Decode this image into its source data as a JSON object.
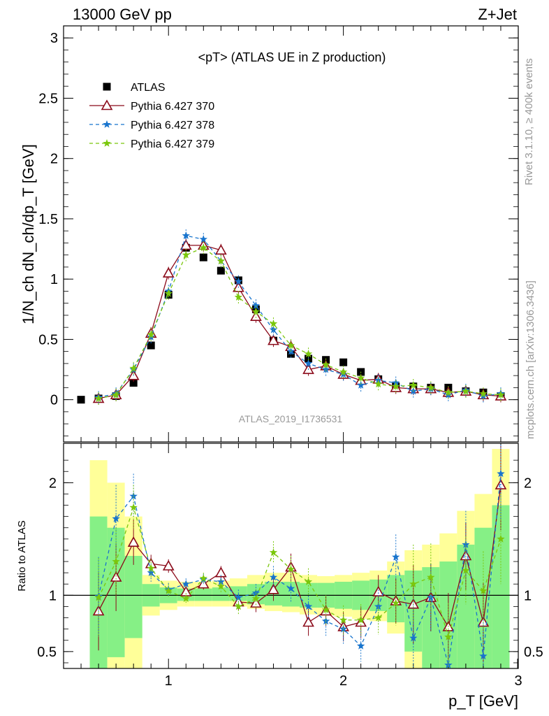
{
  "header": {
    "energy": "13000 GeV pp",
    "process": "Z+Jet",
    "side_top": "Rivet 3.1.10, ≥ 400k events",
    "side_bottom": "mcplots.cern.ch [arXiv:1306.3436]",
    "analysis": "ATLAS_2019_I1736531"
  },
  "colors": {
    "atlas": "#000000",
    "p370": "#8b0a1a",
    "p378": "#1874cd",
    "p379": "#7ac70c",
    "band_yellow": "#ffff99",
    "band_green": "#86f086",
    "watermark": "#999999"
  },
  "chart_data": [
    {
      "type": "line",
      "title": "<pT> (ATLAS UE in Z production)",
      "ylabel": "1/N_ch dN_ch/dp_T [GeV]",
      "xlim": [
        0.4,
        3.0
      ],
      "ylim": [
        -0.35,
        3.1
      ],
      "yticks": [
        "0",
        "0.5",
        "1",
        "1.5",
        "2",
        "2.5",
        "3"
      ],
      "legend_position": "top-left",
      "x": [
        0.5,
        0.6,
        0.7,
        0.8,
        0.9,
        1.0,
        1.1,
        1.2,
        1.3,
        1.4,
        1.5,
        1.6,
        1.7,
        1.8,
        1.9,
        2.0,
        2.1,
        2.2,
        2.3,
        2.4,
        2.5,
        2.6,
        2.7,
        2.8,
        2.9
      ],
      "series": [
        {
          "name": "ATLAS",
          "marker": "square",
          "values": [
            0.0,
            0.01,
            0.03,
            0.14,
            0.45,
            0.87,
            1.26,
            1.18,
            1.07,
            0.99,
            0.75,
            0.49,
            0.38,
            0.34,
            0.33,
            0.31,
            0.23,
            0.17,
            0.11,
            0.11,
            0.1,
            0.1,
            0.07,
            0.06,
            0.03
          ]
        },
        {
          "name": "Pythia 6.427 370",
          "marker": "triangle",
          "values": [
            null,
            0.01,
            0.04,
            0.2,
            0.55,
            1.05,
            1.28,
            1.28,
            1.24,
            0.93,
            0.69,
            0.49,
            0.44,
            0.25,
            0.28,
            0.21,
            0.16,
            0.17,
            0.1,
            0.09,
            0.09,
            0.06,
            0.07,
            0.04,
            0.03
          ]
        },
        {
          "name": "Pythia 6.427 378",
          "marker": "star",
          "values": [
            null,
            0.02,
            0.05,
            0.25,
            0.52,
            0.9,
            1.36,
            1.33,
            1.15,
            0.98,
            0.78,
            0.58,
            0.4,
            0.3,
            0.25,
            0.21,
            0.12,
            0.16,
            0.14,
            0.07,
            0.09,
            0.04,
            0.08,
            0.03,
            0.05
          ]
        },
        {
          "name": "Pythia 6.427 379",
          "marker": "star",
          "values": [
            null,
            0.01,
            0.04,
            0.26,
            0.54,
            0.88,
            1.2,
            1.26,
            1.15,
            0.85,
            0.73,
            0.63,
            0.45,
            0.38,
            0.29,
            0.23,
            0.18,
            0.13,
            0.11,
            0.12,
            0.1,
            0.06,
            0.07,
            0.05,
            0.04
          ]
        }
      ]
    },
    {
      "type": "line",
      "ylabel": "Ratio to ATLAS",
      "xlabel": "p_T [GeV]",
      "xlim": [
        0.4,
        3.0
      ],
      "ylim": [
        0.35,
        2.35
      ],
      "xticks": [
        "1",
        "2",
        "3"
      ],
      "yticks": [
        "0.5",
        "1",
        "2"
      ],
      "x": [
        0.6,
        0.7,
        0.8,
        0.9,
        1.0,
        1.1,
        1.2,
        1.3,
        1.4,
        1.5,
        1.6,
        1.7,
        1.8,
        1.9,
        2.0,
        2.1,
        2.2,
        2.3,
        2.4,
        2.5,
        2.6,
        2.7,
        2.8,
        2.9
      ],
      "bands": {
        "yellow_lo": [
          0.35,
          0.35,
          0.35,
          0.82,
          0.87,
          0.9,
          0.9,
          0.9,
          0.9,
          0.88,
          0.86,
          0.85,
          0.83,
          0.82,
          0.81,
          0.79,
          0.77,
          0.66,
          0.35,
          0.35,
          0.35,
          0.35,
          0.35,
          0.35
        ],
        "yellow_hi": [
          2.2,
          2.0,
          1.7,
          1.18,
          1.13,
          1.12,
          1.12,
          1.13,
          1.15,
          1.18,
          1.2,
          1.2,
          1.18,
          1.17,
          1.18,
          1.2,
          1.22,
          1.3,
          1.4,
          1.45,
          1.55,
          1.75,
          1.9,
          2.3
        ],
        "green_lo": [
          0.35,
          0.45,
          0.62,
          0.9,
          0.93,
          0.95,
          0.95,
          0.95,
          0.95,
          0.92,
          0.91,
          0.9,
          0.89,
          0.89,
          0.88,
          0.87,
          0.86,
          0.76,
          0.5,
          0.35,
          0.35,
          0.35,
          0.35,
          0.35
        ],
        "green_hi": [
          1.7,
          1.6,
          1.35,
          1.1,
          1.07,
          1.06,
          1.06,
          1.07,
          1.08,
          1.1,
          1.12,
          1.12,
          1.11,
          1.11,
          1.12,
          1.13,
          1.14,
          1.18,
          1.22,
          1.25,
          1.3,
          1.45,
          1.6,
          1.8
        ]
      },
      "series": [
        {
          "name": "Pythia 6.427 370",
          "values": [
            0.86,
            1.16,
            1.47,
            1.28,
            1.26,
            1.03,
            1.1,
            1.2,
            0.94,
            0.93,
            1.05,
            1.25,
            0.76,
            0.86,
            0.72,
            0.76,
            1.03,
            0.95,
            0.92,
            0.98,
            0.72,
            1.35,
            0.76,
            1.98
          ]
        },
        {
          "name": "Pythia 6.427 378",
          "values": [
            0.99,
            1.68,
            1.88,
            1.2,
            1.05,
            1.1,
            1.14,
            1.12,
            0.98,
            1.02,
            1.16,
            1.06,
            0.9,
            0.77,
            0.7,
            0.55,
            0.9,
            1.34,
            0.62,
            0.98,
            0.38,
            1.45,
            0.46,
            2.08
          ]
        },
        {
          "name": "Pythia 6.427 379",
          "values": [
            0.98,
            1.3,
            1.78,
            1.24,
            1.04,
            0.97,
            1.15,
            1.08,
            0.9,
            0.97,
            1.38,
            1.23,
            1.12,
            0.87,
            0.78,
            0.78,
            0.8,
            0.93,
            1.1,
            1.16,
            0.63,
            1.22,
            1.04,
            1.5
          ]
        }
      ]
    }
  ]
}
